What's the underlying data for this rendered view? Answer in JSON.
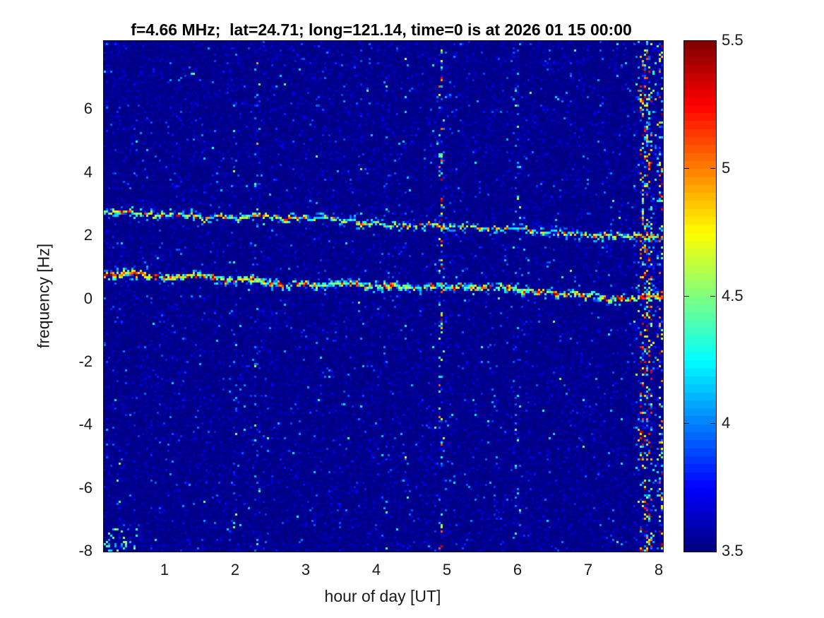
{
  "chart_data": {
    "type": "heatmap",
    "title": "f=4.66 MHz;  lat=24.71; long=121.14, time=0 is at 2026 01 15 00:00",
    "xlabel": "hour of day [UT]",
    "ylabel": "frequency [Hz]",
    "xlim": [
      0.13,
      8.05
    ],
    "ylim": [
      -8.0,
      8.18
    ],
    "xticks": [
      "1",
      "2",
      "3",
      "4",
      "5",
      "6",
      "7",
      "8"
    ],
    "yticks": [
      "6",
      "4",
      "2",
      "0",
      "-2",
      "-4",
      "-6",
      "-8"
    ],
    "grid": false,
    "colorbar": {
      "colormap": "jet",
      "clim": [
        3.5,
        5.5
      ],
      "tick_labels": [
        "5.5",
        "5",
        "4.5",
        "4",
        "3.5"
      ],
      "tick_marks": [
        "5",
        "4.5",
        "4"
      ]
    },
    "background_level": 3.5,
    "features": {
      "traces": [
        {
          "name": "upper-doppler-trace",
          "freq_start_hz": 2.75,
          "freq_end_hz": 1.95,
          "intensity_range": [
            3.95,
            5.2
          ],
          "thickness_cells": 2
        },
        {
          "name": "lower-doppler-trace",
          "freq_start_hz": 0.8,
          "freq_end_hz": 0.02,
          "intensity_range": [
            4.15,
            5.5
          ],
          "thickness_cells": 3
        }
      ],
      "vertical_stripes": [
        {
          "hour": 1.99,
          "strength": "moderate",
          "width_hours": 0.025
        },
        {
          "hour": 2.3,
          "strength": "moderate",
          "width_hours": 0.025
        },
        {
          "hour": 3.78,
          "strength": "faint",
          "width_hours": 0.025
        },
        {
          "hour": 4.14,
          "strength": "faint",
          "width_hours": 0.02
        },
        {
          "hour": 4.4,
          "strength": "faint",
          "width_hours": 0.02
        },
        {
          "hour": 4.91,
          "strength": "strong",
          "width_hours": 0.03
        },
        {
          "hour": 5.98,
          "strength": "moderate",
          "width_hours": 0.03
        },
        {
          "hour": 7.8,
          "strength": "very-strong",
          "width_hours": 0.07
        },
        {
          "hour": 8.02,
          "strength": "strong",
          "width_hours": 0.04
        }
      ]
    }
  }
}
